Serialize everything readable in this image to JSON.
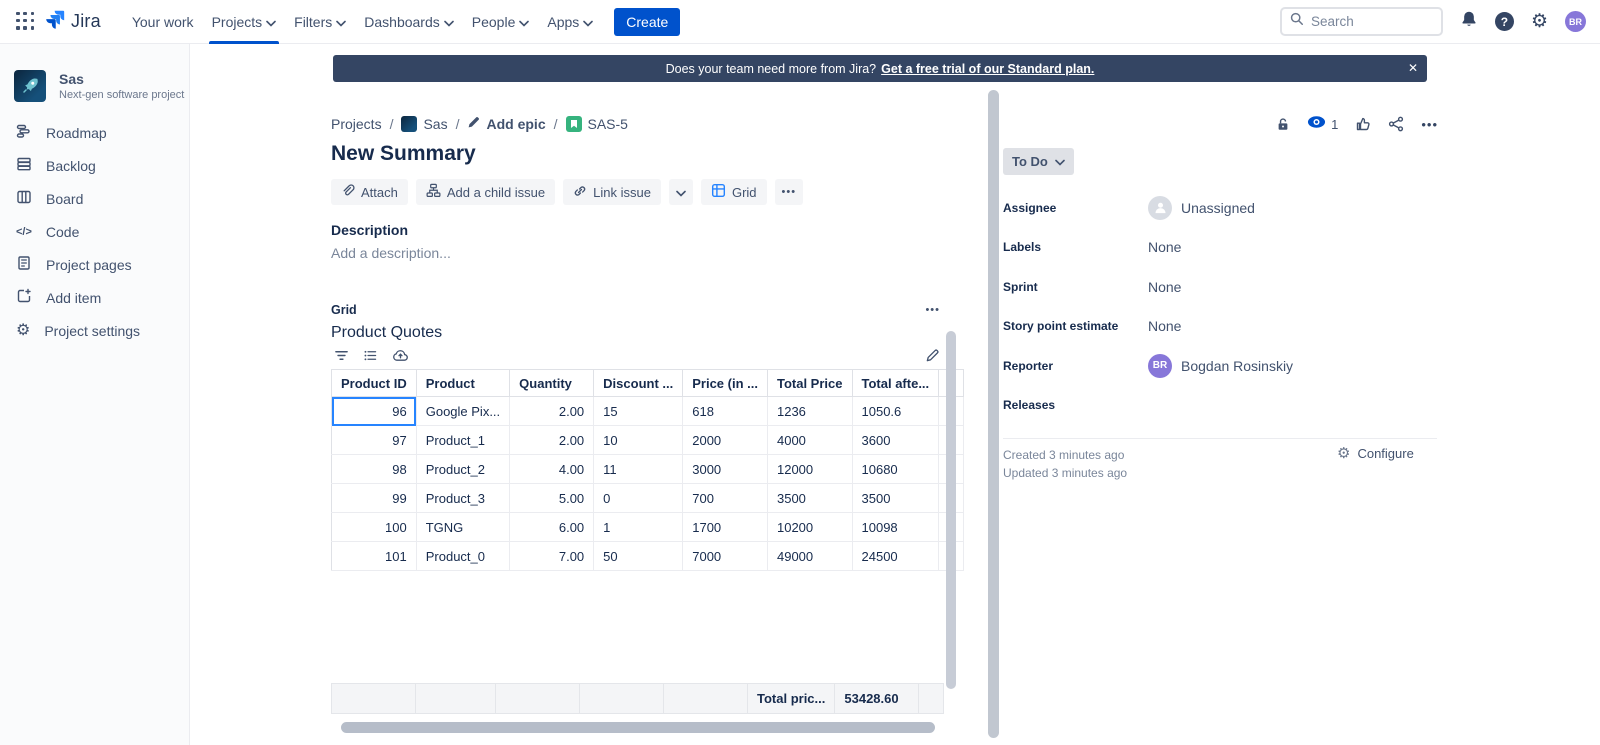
{
  "nav": {
    "logo": "Jira",
    "items": [
      "Your work",
      "Projects",
      "Filters",
      "Dashboards",
      "People",
      "Apps"
    ],
    "create": "Create",
    "search_placeholder": "Search",
    "avatar_initials": "BR"
  },
  "banner": {
    "text": "Does your team need more from Jira?",
    "link": "Get a free trial of our Standard plan.",
    "close": "✕"
  },
  "sidebar": {
    "project_name": "Sas",
    "project_type": "Next-gen software project",
    "items": [
      "Roadmap",
      "Backlog",
      "Board",
      "Code",
      "Project pages",
      "Add item",
      "Project settings"
    ]
  },
  "breadcrumb": {
    "root": "Projects",
    "project": "Sas",
    "epic": "Add epic",
    "issue_key": "SAS-5"
  },
  "issue": {
    "title": "New Summary",
    "buttons": {
      "attach": "Attach",
      "add_child": "Add a child issue",
      "link_issue": "Link issue",
      "grid": "Grid"
    },
    "description_label": "Description",
    "description_placeholder": "Add a description..."
  },
  "grid": {
    "label": "Grid",
    "title": "Product Quotes",
    "columns": [
      "Product ID",
      "Product",
      "Quantity",
      "Discount ...",
      "Price (in ...",
      "Total Price",
      "Total afte..."
    ],
    "rows": [
      [
        "96",
        "Google Pix...",
        "2.00",
        "15",
        "618",
        "1236",
        "1050.6"
      ],
      [
        "97",
        "Product_1",
        "2.00",
        "10",
        "2000",
        "4000",
        "3600"
      ],
      [
        "98",
        "Product_2",
        "4.00",
        "11",
        "3000",
        "12000",
        "10680"
      ],
      [
        "99",
        "Product_3",
        "5.00",
        "0",
        "700",
        "3500",
        "3500"
      ],
      [
        "100",
        "TGNG",
        "6.00",
        "1",
        "1700",
        "10200",
        "10098"
      ],
      [
        "101",
        "Product_0",
        "7.00",
        "50",
        "7000",
        "49000",
        "24500"
      ]
    ],
    "footer_label": "Total pric...",
    "footer_value": "53428.60"
  },
  "panel": {
    "status": "To Do",
    "watchers_count": "1",
    "fields": [
      {
        "label": "Assignee",
        "value": "Unassigned"
      },
      {
        "label": "Labels",
        "value": "None"
      },
      {
        "label": "Sprint",
        "value": "None"
      },
      {
        "label": "Story point estimate",
        "value": "None"
      },
      {
        "label": "Reporter",
        "value": "Bogdan Rosinskiy"
      },
      {
        "label": "Releases",
        "value": ""
      }
    ],
    "reporter_initials": "BR",
    "created": "Created 3 minutes ago",
    "updated": "Updated 3 minutes ago",
    "configure": "Configure"
  },
  "icons": {
    "more": "•••",
    "gear": "⚙",
    "code": "</>"
  },
  "colors": {
    "accent": "#0052cc",
    "banner_bg": "#344563",
    "selection": "#2684ff",
    "story_green": "#36b37e",
    "avatar_purple": "#8777d9"
  }
}
